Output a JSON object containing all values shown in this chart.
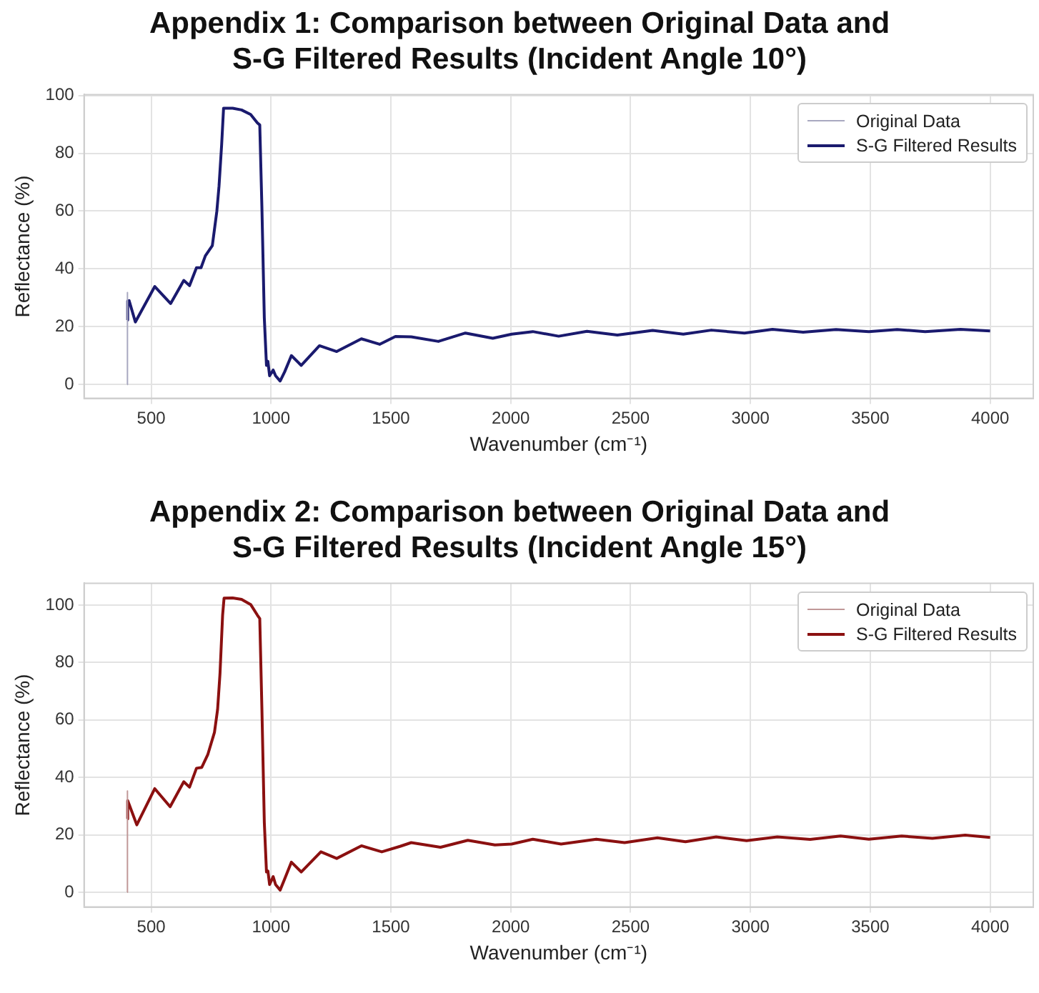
{
  "chart_data": [
    {
      "type": "line",
      "title": "Appendix 1: Comparison between Original Data and S-G Filtered Results (Incident Angle 10°)",
      "xlabel": "Wavenumber (cm⁻¹)",
      "ylabel": "Reflectance (%)",
      "xlim": [
        220,
        4180
      ],
      "xticks": [
        500,
        1000,
        1500,
        2000,
        2500,
        3000,
        3500,
        4000
      ],
      "ylim": [
        -4.8,
        100.3
      ],
      "yticks": [
        0,
        20,
        40,
        60,
        80,
        100
      ],
      "grid": true,
      "legend": "top right",
      "marker": "none",
      "line_style": "solid",
      "series": [
        {
          "name": "Original Data",
          "color": "#a8a8c0",
          "x": [
            400,
            400,
            402
          ],
          "values": [
            0,
            31.8,
            28
          ]
        },
        {
          "name": "S-G Filtered Results",
          "color": "#1a1a6e",
          "x": [
            400,
            402,
            408,
            434,
            515,
            581,
            636,
            660,
            689,
            708,
            726,
            755,
            774,
            783,
            794,
            802,
            840,
            877,
            915,
            943,
            953,
            962,
            972,
            981,
            987,
            994,
            1009,
            1019,
            1038,
            1057,
            1085,
            1126,
            1202,
            1274,
            1377,
            1453,
            1519,
            1585,
            1698,
            1811,
            1925,
            2004,
            2092,
            2200,
            2318,
            2445,
            2592,
            2720,
            2837,
            2975,
            3092,
            3220,
            3357,
            3494,
            3612,
            3729,
            3876,
            4000
          ],
          "values": [
            22.3,
            28.9,
            29,
            21.6,
            33.9,
            28,
            36,
            34.2,
            40.4,
            40.4,
            44.5,
            48,
            60,
            68.6,
            83,
            95.6,
            95.6,
            95,
            93.4,
            90.5,
            89.8,
            61,
            23,
            6.6,
            8,
            3,
            5,
            3,
            1.2,
            4.4,
            10,
            6.6,
            13.4,
            11.4,
            15.8,
            13.9,
            16.6,
            16.5,
            14.9,
            17.8,
            16,
            17.4,
            18.3,
            16.7,
            18.4,
            17.1,
            18.7,
            17.4,
            18.8,
            17.8,
            19.1,
            18.1,
            19,
            18.3,
            19,
            18.3,
            19.1,
            18.5
          ]
        }
      ]
    },
    {
      "type": "line",
      "title": "Appendix 2: Comparison between Original Data and S-G Filtered Results (Incident Angle 15°)",
      "xlabel": "Wavenumber (cm⁻¹)",
      "ylabel": "Reflectance (%)",
      "xlim": [
        220,
        4180
      ],
      "xticks": [
        500,
        1000,
        1500,
        2000,
        2500,
        3000,
        3500,
        4000
      ],
      "ylim": [
        -5.1,
        107.6
      ],
      "yticks": [
        0,
        20,
        40,
        60,
        80,
        100
      ],
      "grid": true,
      "legend": "top right",
      "marker": "none",
      "line_style": "solid",
      "series": [
        {
          "name": "Original Data",
          "color": "#c09898",
          "x": [
            400,
            400,
            402
          ],
          "values": [
            0,
            35.3,
            31
          ]
        },
        {
          "name": "S-G Filtered Results",
          "color": "#8b1010",
          "x": [
            400,
            402,
            408,
            440,
            515,
            579,
            636,
            660,
            689,
            711,
            736,
            764,
            777,
            787,
            798,
            804,
            840,
            877,
            915,
            943,
            953,
            962,
            972,
            981,
            987,
            994,
            1009,
            1019,
            1038,
            1057,
            1085,
            1126,
            1208,
            1274,
            1377,
            1462,
            1538,
            1585,
            1707,
            1821,
            1934,
            2004,
            2092,
            2210,
            2357,
            2475,
            2612,
            2729,
            2857,
            2984,
            3112,
            3249,
            3376,
            3494,
            3631,
            3759,
            3896,
            4000
          ],
          "values": [
            25.6,
            31.9,
            30.6,
            23.5,
            36.1,
            29.8,
            38.5,
            36.6,
            43.2,
            43.5,
            47.9,
            55.7,
            63.6,
            76,
            96.5,
            102.4,
            102.5,
            102,
            100.2,
            96.5,
            95.3,
            63.6,
            24.3,
            7.1,
            7.4,
            2.7,
            5.5,
            2.7,
            0.8,
            4.7,
            10.5,
            7.1,
            14.1,
            11.8,
            16.2,
            14.1,
            16,
            17.3,
            15.7,
            18.1,
            16.5,
            16.8,
            18.5,
            16.8,
            18.5,
            17.3,
            19,
            17.6,
            19.3,
            18,
            19.3,
            18.4,
            19.6,
            18.5,
            19.6,
            18.8,
            19.9,
            19.1
          ]
        }
      ]
    }
  ]
}
